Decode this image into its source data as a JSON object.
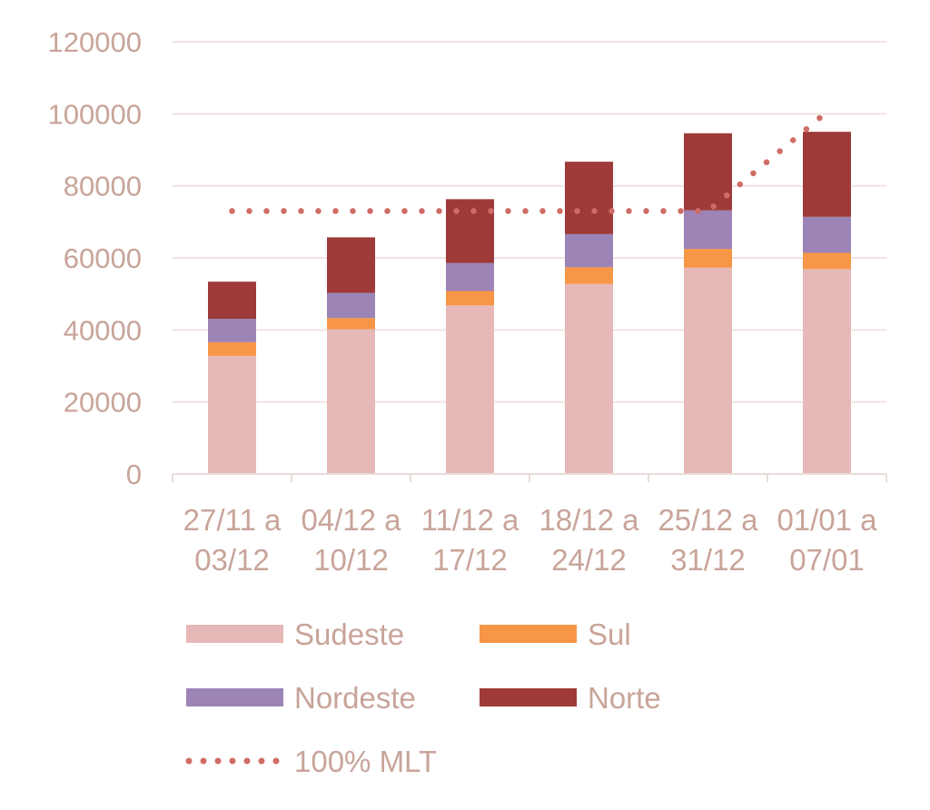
{
  "chart_data": {
    "type": "bar",
    "stacked": true,
    "categories": [
      [
        "27/11 a",
        "03/12"
      ],
      [
        "04/12 a",
        "10/12"
      ],
      [
        "11/12 a",
        "17/12"
      ],
      [
        "18/12 a",
        "24/12"
      ],
      [
        "25/12 a",
        "31/12"
      ],
      [
        "01/01 a",
        "07/01"
      ]
    ],
    "series": [
      {
        "name": "Sudeste",
        "color": "#e6b8b7",
        "values": [
          32800,
          40200,
          46800,
          52800,
          57300,
          56900
        ]
      },
      {
        "name": "Sul",
        "color": "#f79646",
        "values": [
          3800,
          3100,
          4000,
          4600,
          5200,
          4500
        ]
      },
      {
        "name": "Nordeste",
        "color": "#9c84b6",
        "values": [
          6500,
          7000,
          7800,
          9200,
          10700,
          10000
        ]
      },
      {
        "name": "Norte",
        "color": "#9e3a38",
        "values": [
          10300,
          15400,
          17700,
          20100,
          21400,
          23600
        ]
      }
    ],
    "line_series": {
      "name": "100% MLT",
      "color": "#d06c66",
      "style": "dotted",
      "values": [
        73000,
        73000,
        73000,
        73000,
        73000,
        100500
      ]
    },
    "ylim": [
      0,
      120000
    ],
    "yticks": [
      "0",
      "20000",
      "40000",
      "60000",
      "80000",
      "100000",
      "120000"
    ],
    "grid": true,
    "legend_position": "bottom"
  }
}
